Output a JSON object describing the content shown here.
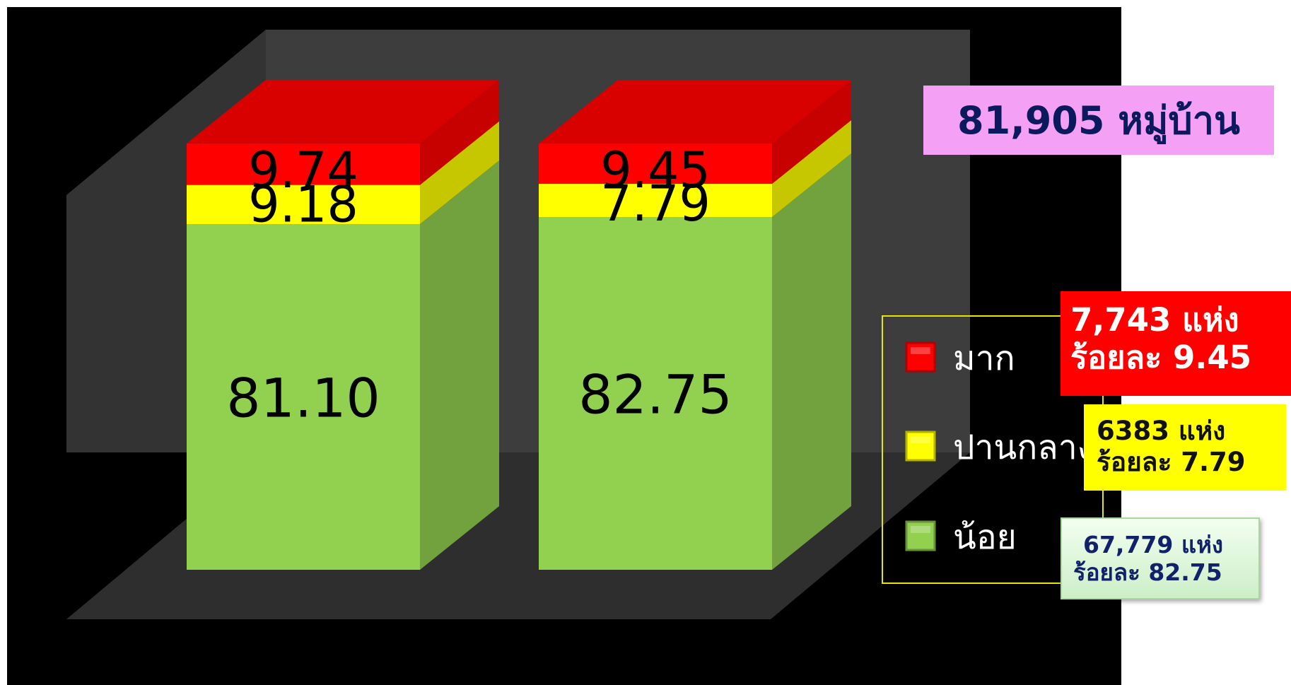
{
  "chart_data": {
    "type": "bar",
    "stacked": true,
    "categories": [
      "",
      ""
    ],
    "series": [
      {
        "name": "น้อย",
        "values": [
          81.1,
          82.75
        ],
        "labels": [
          "81.10",
          "82.75"
        ],
        "color": "#92d050"
      },
      {
        "name": "ปานกลาง",
        "values": [
          9.18,
          7.79
        ],
        "labels": [
          "9.18",
          "7.79"
        ],
        "color": "#ffff00"
      },
      {
        "name": "มาก",
        "values": [
          9.74,
          9.45
        ],
        "labels": [
          "9.74",
          "9.45"
        ],
        "color": "#ff0000"
      }
    ],
    "ylim": [
      0,
      100
    ],
    "legend_position": "right",
    "background": "#000000"
  },
  "total_box": "81,905 หมู่บ้าน",
  "callouts": {
    "high": {
      "line1": "7,743 แห่ง",
      "line2": "ร้อยละ 9.45"
    },
    "medium": {
      "line1": "6383 แห่ง",
      "line2": "ร้อยละ 7.79"
    },
    "low": {
      "line1": "67,779 แห่ง",
      "line2": "ร้อยละ 82.75"
    }
  },
  "legend_border_color": "#e6e600"
}
